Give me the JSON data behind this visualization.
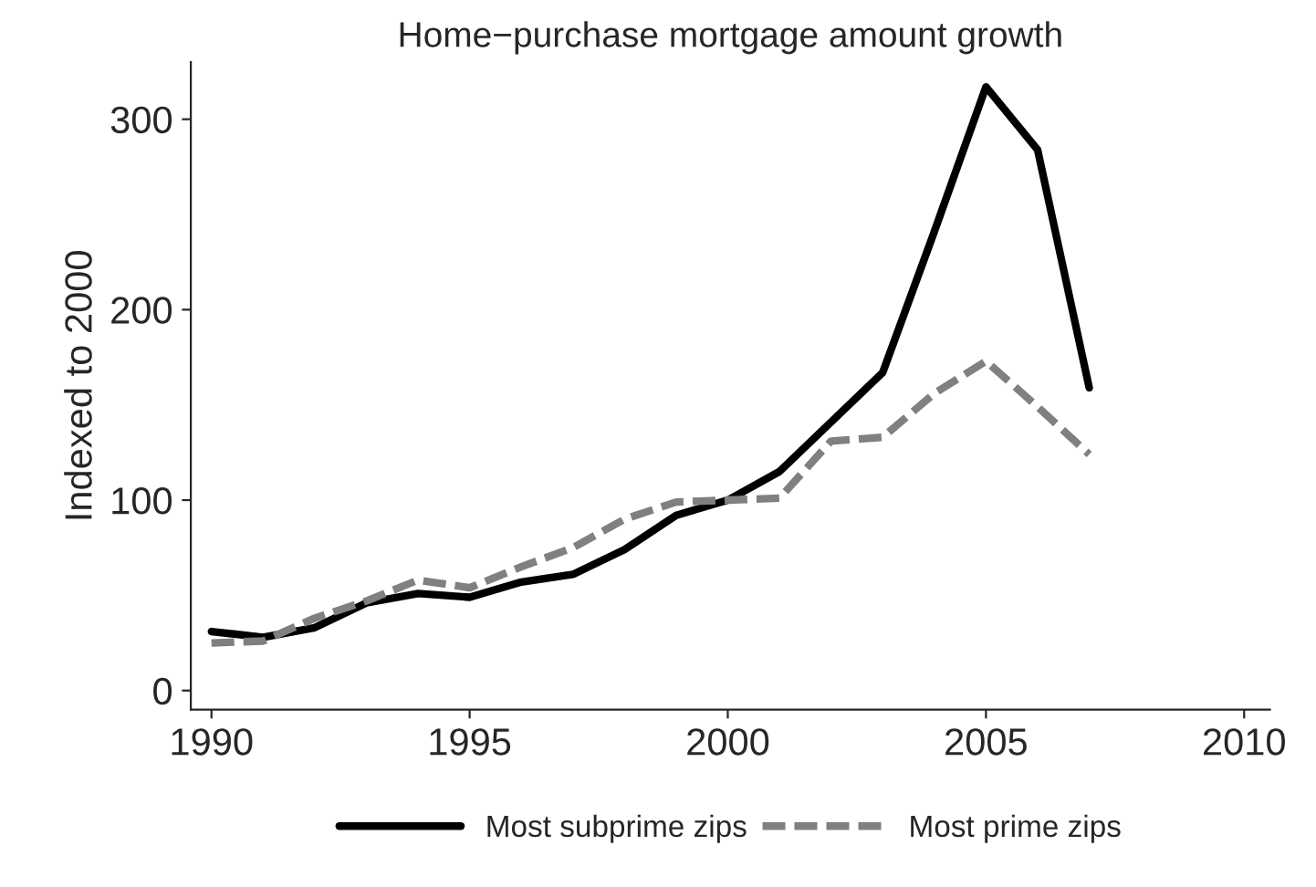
{
  "chart_data": {
    "type": "line",
    "title": "Home−purchase mortgage amount growth",
    "ylabel": "Indexed to 2000",
    "x": [
      1990,
      1991,
      1992,
      1993,
      1994,
      1995,
      1996,
      1997,
      1998,
      1999,
      2000,
      2001,
      2002,
      2003,
      2004,
      2005,
      2006,
      2007
    ],
    "series": [
      {
        "name": "Most subprime zips",
        "color": "#000000",
        "line_style": "solid",
        "values": [
          31,
          28,
          33,
          46,
          51,
          49,
          57,
          61,
          74,
          92,
          100,
          115,
          141,
          167,
          241,
          317,
          284,
          159
        ]
      },
      {
        "name": "Most prime zips",
        "color": "#808080",
        "line_style": "dashed",
        "values": [
          25,
          26,
          38,
          47,
          58,
          54,
          65,
          75,
          90,
          99,
          100,
          101,
          131,
          133,
          156,
          173,
          149,
          124
        ]
      }
    ],
    "xlim": [
      1989.6,
      2010.5
    ],
    "xticks": [
      1990,
      1995,
      2000,
      2005,
      2010
    ],
    "ylim": [
      -10,
      330
    ],
    "yticks": [
      0,
      100,
      200,
      300
    ],
    "grid": false,
    "legend": "bottom"
  }
}
